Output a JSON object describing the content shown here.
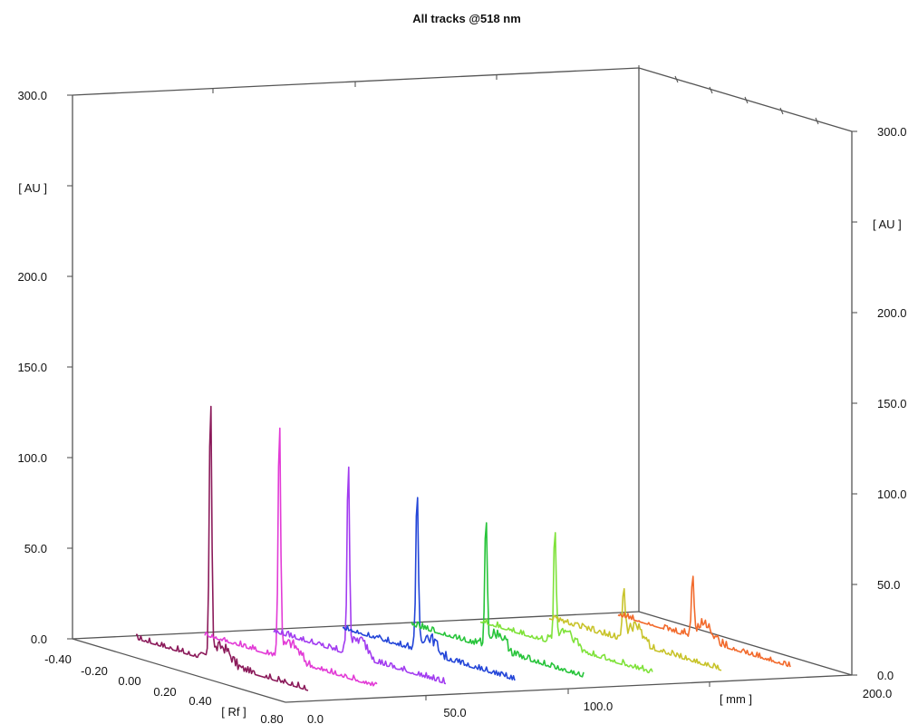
{
  "chart_data": {
    "type": "line",
    "title": "All tracks @518 nm",
    "ylabel_left": "[ AU ]",
    "ylabel_right": "[ AU ]",
    "rf_label": "[ Rf ]",
    "x_label": "[ mm ]",
    "ylim": [
      0,
      300
    ],
    "left_y_ticks": [
      "0.0",
      "50.0",
      "100.0",
      "150.0",
      "200.0",
      "300.0"
    ],
    "right_y_ticks": [
      "0.0",
      "50.0",
      "100.0",
      "150.0",
      "200.0",
      "300.0"
    ],
    "rf_ticks": [
      "-0.40",
      "-0.20",
      "0.00",
      "0.20",
      "0.40",
      "0.80"
    ],
    "mm_ticks": [
      "0.0",
      "50.0",
      "100.0",
      "200.0"
    ],
    "series": [
      {
        "color": "#8b1a5a",
        "peak_rf": 0.12,
        "peak_height": 145
      },
      {
        "color": "#e23bd6",
        "peak_rf": 0.12,
        "peak_height": 130
      },
      {
        "color": "#a23cf0",
        "peak_rf": 0.12,
        "peak_height": 105
      },
      {
        "color": "#2446d8",
        "peak_rf": 0.12,
        "peak_height": 85
      },
      {
        "color": "#27c43a",
        "peak_rf": 0.12,
        "peak_height": 68
      },
      {
        "color": "#7fe23a",
        "peak_rf": 0.12,
        "peak_height": 60
      },
      {
        "color": "#c8c32a",
        "peak_rf": 0.12,
        "peak_height": 25
      },
      {
        "color": "#f26a2c",
        "peak_rf": 0.12,
        "peak_height": 30
      }
    ]
  }
}
